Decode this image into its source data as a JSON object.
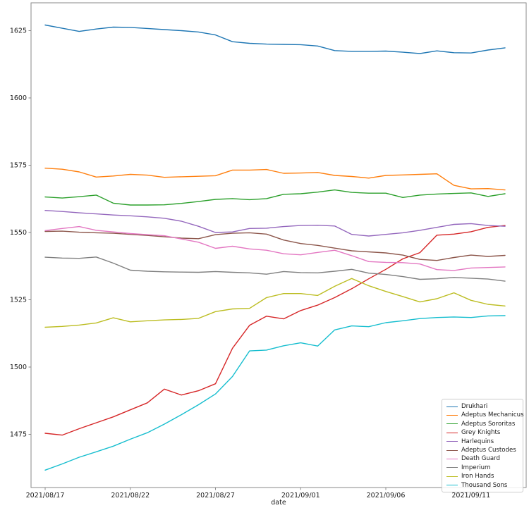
{
  "chart_data": {
    "type": "line",
    "title": "",
    "xlabel": "date",
    "ylabel": "",
    "grid": false,
    "legend_position": "lower right",
    "ylim": [
      1455,
      1634
    ],
    "y_ticks": [
      1475,
      1500,
      1525,
      1550,
      1575,
      1600,
      1625
    ],
    "x_tick_day_indices": [
      0,
      5,
      10,
      15,
      20,
      25
    ],
    "x_tick_labels": [
      "2021/08/17",
      "2021/08/22",
      "2021/08/27",
      "2021/09/01",
      "2021/09/06",
      "2021/09/11"
    ],
    "x": [
      "2021/08/17",
      "2021/08/18",
      "2021/08/19",
      "2021/08/20",
      "2021/08/21",
      "2021/08/22",
      "2021/08/23",
      "2021/08/24",
      "2021/08/25",
      "2021/08/26",
      "2021/08/27",
      "2021/08/28",
      "2021/08/29",
      "2021/08/30",
      "2021/08/31",
      "2021/09/01",
      "2021/09/02",
      "2021/09/03",
      "2021/09/04",
      "2021/09/05",
      "2021/09/06",
      "2021/09/07",
      "2021/09/08",
      "2021/09/09",
      "2021/09/10",
      "2021/09/11",
      "2021/09/12",
      "2021/09/13"
    ],
    "series": [
      {
        "name": "Drukhari",
        "color": "#1f77b4",
        "values": [
          1627.1,
          1625.9,
          1624.7,
          1625.6,
          1626.3,
          1626.2,
          1625.8,
          1625.4,
          1625.0,
          1624.5,
          1623.4,
          1620.9,
          1620.3,
          1620.0,
          1619.9,
          1619.8,
          1619.3,
          1617.6,
          1617.3,
          1617.3,
          1617.4,
          1617.0,
          1616.5,
          1617.5,
          1616.8,
          1616.7,
          1617.8,
          1618.6
        ]
      },
      {
        "name": "Adeptus Mechanicus",
        "color": "#ff7f0e",
        "values": [
          1573.9,
          1573.5,
          1572.5,
          1570.6,
          1571.0,
          1571.6,
          1571.3,
          1570.5,
          1570.7,
          1570.9,
          1571.1,
          1573.2,
          1573.2,
          1573.4,
          1572.0,
          1572.1,
          1572.3,
          1571.2,
          1570.8,
          1570.2,
          1571.2,
          1571.4,
          1571.6,
          1571.8,
          1567.5,
          1566.2,
          1566.3,
          1565.8
        ]
      },
      {
        "name": "Adeptus Sororitas",
        "color": "#2ca02c",
        "values": [
          1563.2,
          1562.8,
          1563.3,
          1563.9,
          1560.9,
          1560.2,
          1560.2,
          1560.3,
          1560.8,
          1561.5,
          1562.3,
          1562.6,
          1562.2,
          1562.6,
          1564.2,
          1564.4,
          1565.0,
          1565.8,
          1564.9,
          1564.6,
          1564.6,
          1563.0,
          1563.9,
          1564.3,
          1564.5,
          1564.7,
          1563.4,
          1564.4
        ]
      },
      {
        "name": "Grey Knights",
        "color": "#d62728",
        "values": [
          1475.4,
          1474.7,
          1477.1,
          1479.3,
          1481.5,
          1484.1,
          1486.7,
          1491.8,
          1489.6,
          1491.2,
          1493.8,
          1507.0,
          1515.5,
          1518.9,
          1517.9,
          1521.0,
          1523.0,
          1525.8,
          1529.1,
          1532.8,
          1536.3,
          1540.2,
          1542.5,
          1549.0,
          1549.4,
          1550.3,
          1551.9,
          1552.6
        ]
      },
      {
        "name": "Harlequins",
        "color": "#9467bd",
        "values": [
          1558.2,
          1557.8,
          1557.3,
          1556.9,
          1556.5,
          1556.2,
          1555.8,
          1555.3,
          1554.2,
          1552.3,
          1550.0,
          1550.2,
          1551.5,
          1551.6,
          1552.2,
          1552.6,
          1552.7,
          1552.4,
          1549.3,
          1548.7,
          1549.3,
          1549.9,
          1550.8,
          1551.9,
          1553.0,
          1553.3,
          1552.6,
          1552.3
        ]
      },
      {
        "name": "Adeptus Custodes",
        "color": "#8c564b",
        "values": [
          1550.4,
          1550.5,
          1550.1,
          1549.9,
          1549.7,
          1549.3,
          1548.9,
          1548.4,
          1547.9,
          1547.7,
          1549.2,
          1549.7,
          1549.9,
          1549.4,
          1547.2,
          1545.9,
          1545.2,
          1544.2,
          1543.2,
          1542.8,
          1542.4,
          1541.6,
          1540.0,
          1539.6,
          1540.7,
          1541.6,
          1541.1,
          1541.5
        ]
      },
      {
        "name": "Death Guard",
        "color": "#e377c2",
        "values": [
          1550.7,
          1551.5,
          1552.2,
          1550.8,
          1550.2,
          1549.6,
          1549.2,
          1548.8,
          1547.6,
          1546.4,
          1544.1,
          1544.9,
          1543.9,
          1543.4,
          1542.1,
          1541.7,
          1542.6,
          1543.4,
          1541.4,
          1539.2,
          1538.9,
          1538.8,
          1538.3,
          1536.2,
          1535.9,
          1536.8,
          1537.0,
          1537.2
        ]
      },
      {
        "name": "Imperium",
        "color": "#7f7f7f",
        "values": [
          1540.8,
          1540.5,
          1540.4,
          1540.9,
          1538.6,
          1536.0,
          1535.6,
          1535.4,
          1535.3,
          1535.2,
          1535.5,
          1535.2,
          1535.0,
          1534.5,
          1535.5,
          1535.1,
          1535.0,
          1535.6,
          1536.3,
          1534.9,
          1534.4,
          1533.6,
          1532.6,
          1532.8,
          1533.3,
          1533.0,
          1532.7,
          1531.9
        ]
      },
      {
        "name": "Iron Hands",
        "color": "#bcbd22",
        "values": [
          1514.8,
          1515.1,
          1515.6,
          1516.4,
          1518.3,
          1516.8,
          1517.2,
          1517.5,
          1517.7,
          1518.1,
          1520.6,
          1521.6,
          1521.8,
          1525.8,
          1527.3,
          1527.3,
          1526.6,
          1530.0,
          1532.9,
          1530.2,
          1528.1,
          1526.2,
          1524.2,
          1525.4,
          1527.6,
          1524.8,
          1523.3,
          1522.7
        ]
      },
      {
        "name": "Thousand Sons",
        "color": "#17becf",
        "values": [
          1461.7,
          1464.0,
          1466.5,
          1468.5,
          1470.6,
          1473.2,
          1475.6,
          1478.8,
          1482.3,
          1486.0,
          1490.0,
          1496.5,
          1506.0,
          1506.3,
          1507.9,
          1509.0,
          1507.8,
          1513.8,
          1515.3,
          1515.0,
          1516.5,
          1517.2,
          1518.0,
          1518.4,
          1518.6,
          1518.4,
          1519.0,
          1519.1
        ]
      }
    ]
  }
}
